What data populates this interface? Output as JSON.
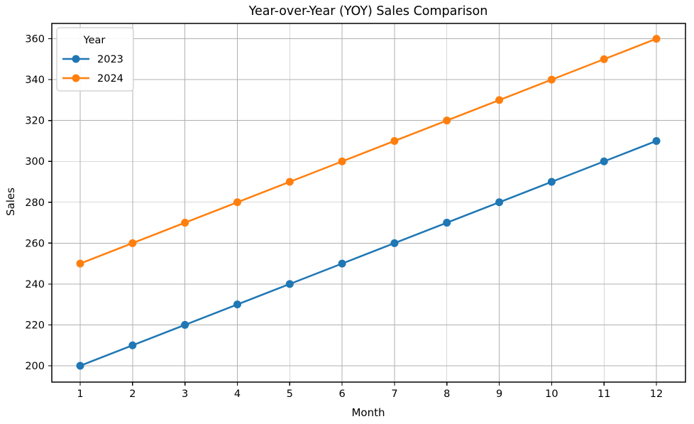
{
  "chart_data": {
    "type": "line",
    "title": "Year-over-Year (YOY) Sales Comparison",
    "xlabel": "Month",
    "ylabel": "Sales",
    "x": [
      1,
      2,
      3,
      4,
      5,
      6,
      7,
      8,
      9,
      10,
      11,
      12
    ],
    "xticks": [
      1,
      2,
      3,
      4,
      5,
      6,
      7,
      8,
      9,
      10,
      11,
      12
    ],
    "yticks": [
      200,
      220,
      240,
      260,
      280,
      300,
      320,
      340,
      360
    ],
    "xlim": [
      0.458,
      12.555
    ],
    "ylim": [
      192,
      367.5
    ],
    "grid": true,
    "grid_color": "#b0b0b0",
    "background": "#ffffff",
    "legend": {
      "title": "Year",
      "position": "upper-left",
      "border_color": "#cccccc"
    },
    "series": [
      {
        "name": "2023",
        "color": "#1f77b4",
        "values": [
          200,
          210,
          220,
          230,
          240,
          250,
          260,
          270,
          280,
          290,
          300,
          310
        ]
      },
      {
        "name": "2024",
        "color": "#ff7f0e",
        "values": [
          250,
          260,
          270,
          280,
          290,
          300,
          310,
          320,
          330,
          340,
          350,
          360
        ]
      }
    ]
  }
}
